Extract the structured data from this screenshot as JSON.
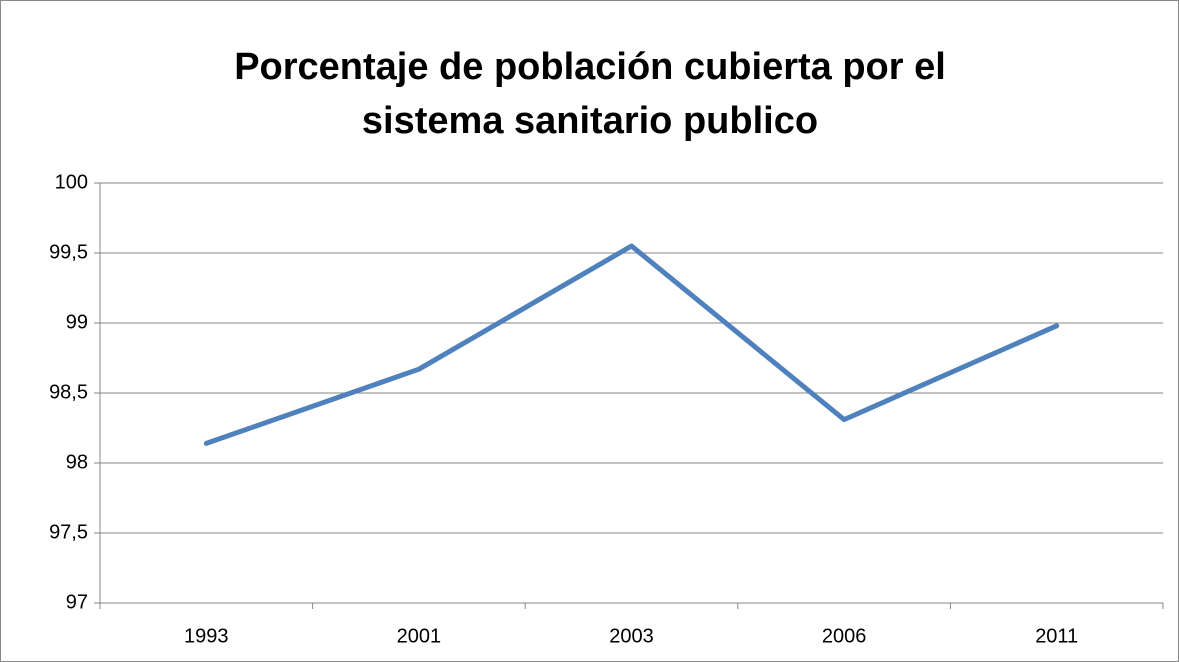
{
  "chart_data": {
    "type": "line",
    "title": "Porcentaje de población cubierta por el sistema sanitario publico",
    "categories": [
      "1993",
      "2001",
      "2003",
      "2006",
      "2011"
    ],
    "values": [
      98.14,
      98.67,
      99.55,
      98.31,
      98.98
    ],
    "color": "#4f81bd",
    "ylim": [
      97,
      100
    ],
    "yticks": [
      97,
      {
        "value": 97.5,
        "label": "97,5"
      },
      98,
      {
        "value": 98.5,
        "label": "98,5"
      },
      99,
      {
        "value": 99.5,
        "label": "99,5"
      },
      100
    ],
    "grid": true
  }
}
